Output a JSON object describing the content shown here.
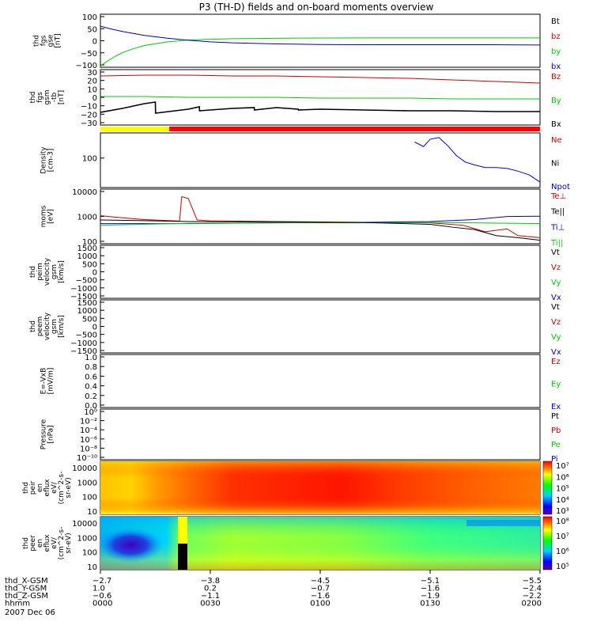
{
  "title": "P3 (TH-D) fields and on-board moments overview",
  "date_label": "2007 Dec 06",
  "colors": {
    "red": "#cc0000",
    "green": "#00cc00",
    "blue": "#0000cc",
    "black": "#000000",
    "bar_yellow": "#ffff00",
    "bar_red": "#ff0000"
  },
  "chart_data": [
    {
      "type": "line",
      "ylabel": [
        "thd",
        "fgs",
        "gse",
        "[nT]"
      ],
      "yticks": [
        "100",
        "50",
        "0",
        "−50",
        "−100"
      ],
      "ylim": [
        -100,
        100
      ],
      "legend": [
        "Bt",
        "bz",
        "by",
        "bx"
      ],
      "series": [
        {
          "name": "by",
          "color": "green",
          "x": [
            0,
            3,
            6,
            10,
            15,
            20,
            30,
            40,
            60,
            90,
            120,
            150,
            180,
            200
          ],
          "y": [
            -95,
            -78,
            -62,
            -45,
            -30,
            -18,
            -5,
            3,
            8,
            10,
            11,
            11,
            11,
            11
          ]
        },
        {
          "name": "bx",
          "color": "blue",
          "x": [
            0,
            5,
            10,
            20,
            30,
            40,
            50,
            60,
            80,
            100,
            120,
            150,
            180,
            200
          ],
          "y": [
            55,
            44,
            35,
            20,
            10,
            2,
            -4,
            -8,
            -12,
            -14,
            -15,
            -15,
            -15,
            -16
          ]
        }
      ]
    },
    {
      "type": "line",
      "ylabel": [
        "thd",
        "fgs",
        "gsm",
        "-tb",
        "[nT]"
      ],
      "yticks": [
        "30",
        "20",
        "10",
        "0",
        "−10",
        "−20",
        "−30"
      ],
      "ylim": [
        -35,
        35
      ],
      "legend": [
        "Bz",
        "By",
        "Bx"
      ],
      "series": [
        {
          "name": "Bz",
          "color": "red",
          "x": [
            0,
            20,
            40,
            60,
            80,
            100,
            120,
            140,
            160,
            180,
            200
          ],
          "y": [
            27,
            28,
            28,
            27,
            27,
            26,
            25,
            24,
            22,
            20,
            18
          ]
        },
        {
          "name": "By",
          "color": "green",
          "x": [
            0,
            20,
            40,
            60,
            80,
            100,
            120,
            140,
            160,
            180,
            200
          ],
          "y": [
            1,
            1,
            0,
            0,
            0,
            -1,
            -1,
            -1,
            -2,
            -2,
            -2
          ]
        },
        {
          "name": "Bx",
          "color": "black",
          "x": [
            0,
            10,
            20,
            25,
            25.1,
            40,
            45,
            45.1,
            60,
            70,
            70.1,
            80,
            90,
            90.1,
            100,
            120,
            140,
            160,
            180,
            200
          ],
          "y": [
            -19,
            -14,
            -8,
            -6,
            -20,
            -15,
            -12,
            -17,
            -14,
            -13,
            -16,
            -13,
            -15,
            -16,
            -15,
            -16,
            -17,
            -17,
            -18,
            -18
          ]
        }
      ]
    },
    {
      "type": "line",
      "ylabel": [
        "Density",
        "[cm-3]"
      ],
      "yticks": [
        "100"
      ],
      "ylim": [
        0,
        300
      ],
      "legend": [
        "Ne",
        "Ni",
        "Npot"
      ],
      "series": [
        {
          "name": "Npot",
          "color": "blue",
          "x": [
            143,
            147,
            150,
            154,
            158,
            162,
            166,
            170,
            175,
            180,
            185,
            190,
            195,
            200
          ],
          "y": [
            250,
            225,
            265,
            275,
            230,
            175,
            140,
            125,
            110,
            110,
            105,
            90,
            70,
            30
          ]
        }
      ]
    },
    {
      "type": "line",
      "ylabel": [
        "moms",
        "[eV]"
      ],
      "yticks": [
        "10000",
        "1000",
        "100"
      ],
      "legend": [
        "Te⊥",
        "Te||",
        "Ti⊥",
        "Ti||"
      ],
      "series": [
        {
          "name": "Te⊥",
          "color": "red",
          "x": [
            0,
            10,
            20,
            36,
            37,
            40,
            44,
            50,
            80,
            120,
            150,
            165,
            175,
            185,
            190,
            200
          ],
          "y": [
            760,
            620,
            520,
            450,
            4800,
            4000,
            500,
            460,
            430,
            400,
            380,
            300,
            160,
            210,
            110,
            90
          ]
        },
        {
          "name": "Ti⊥",
          "color": "blue",
          "x": [
            0,
            40,
            80,
            120,
            150,
            170,
            185,
            200
          ],
          "y": [
            350,
            350,
            380,
            400,
            430,
            520,
            700,
            720
          ]
        },
        {
          "name": "Ti||",
          "color": "green",
          "x": [
            0,
            40,
            80,
            120,
            150,
            170,
            200
          ],
          "y": [
            300,
            360,
            380,
            380,
            390,
            380,
            350
          ]
        },
        {
          "name": "Te||",
          "color": "black",
          "x": [
            0,
            20,
            40,
            80,
            120,
            150,
            160,
            170,
            180,
            190,
            200
          ],
          "y": [
            500,
            470,
            430,
            410,
            390,
            330,
            250,
            200,
            110,
            90,
            70
          ]
        }
      ]
    },
    {
      "type": "line",
      "ylabel": [
        "thd",
        "peim",
        "velocity",
        "gsm",
        "[km/s]"
      ],
      "yticks": [
        "1500",
        "1000",
        "500",
        "0",
        "−500",
        "−1000",
        "−1500"
      ],
      "ylim": [
        -1500,
        1500
      ],
      "legend": [
        "Vt",
        "Vz",
        "Vy",
        "Vx"
      ],
      "series": []
    },
    {
      "type": "line",
      "ylabel": [
        "thd",
        "peem",
        "velocity",
        "gsm",
        "[km/s]"
      ],
      "yticks": [
        "1500",
        "1000",
        "500",
        "0",
        "−500",
        "−1000",
        "−1500"
      ],
      "ylim": [
        -1500,
        1500
      ],
      "legend": [
        "Vt",
        "Vz",
        "Vy",
        "Vx"
      ],
      "series": []
    },
    {
      "type": "line",
      "ylabel": [
        "E=-VxB",
        "[mV/m]"
      ],
      "yticks": [
        "1.0",
        "0.8",
        "0.6",
        "0.4",
        "0.2",
        "0.0"
      ],
      "ylim": [
        0,
        1
      ],
      "legend": [
        "Ez",
        "Ey",
        "Ex"
      ],
      "series": []
    },
    {
      "type": "line",
      "ylabel": [
        "Pressure",
        "[nPa]"
      ],
      "yticks": [
        "10⁰",
        "10⁻²",
        "10⁻⁴",
        "10⁻⁶",
        "10⁻⁸",
        "10⁻¹⁰"
      ],
      "legend": [
        "Pt",
        "Pb",
        "Pe",
        "Pi"
      ],
      "series": []
    },
    {
      "type": "heatmap",
      "ylabel": [
        "thd",
        "peir",
        "en",
        "eflux",
        "eV/",
        "(cm^2-s-",
        "sr-eV)"
      ],
      "yticks": [
        "10000",
        "1000",
        "100",
        "10"
      ],
      "colorbar_ticks": [
        "10⁷",
        "10⁶",
        "10⁵",
        "10⁴",
        "10³"
      ]
    },
    {
      "type": "heatmap",
      "ylabel": [
        "thd",
        "peer",
        "en",
        "eflux",
        "eV/",
        "(cm^2-s-",
        "sr-eV)"
      ],
      "yticks": [
        "10000",
        "1000",
        "100",
        "10"
      ],
      "colorbar_ticks": [
        "10⁸",
        "10⁷",
        "10⁶",
        "10⁵"
      ]
    }
  ],
  "x_axis": {
    "row_labels": [
      "thd_X-GSM",
      "thd_Y-GSM",
      "thd_Z-GSM",
      "hhmm"
    ],
    "ticks": [
      {
        "x": 0,
        "values": [
          "−2.7",
          "1.0",
          "−0.6",
          "0000"
        ]
      },
      {
        "x": 50,
        "values": [
          "−3.8",
          "0.2",
          "−1.1",
          "0030"
        ]
      },
      {
        "x": 100,
        "values": [
          "−4.5",
          "−0.7",
          "−1.6",
          "0100"
        ]
      },
      {
        "x": 150,
        "values": [
          "−5.1",
          "−1.6",
          "−1.9",
          "0130"
        ]
      },
      {
        "x": 200,
        "values": [
          "−5.5",
          "−2.4",
          "−2.2",
          "0200"
        ]
      }
    ]
  }
}
